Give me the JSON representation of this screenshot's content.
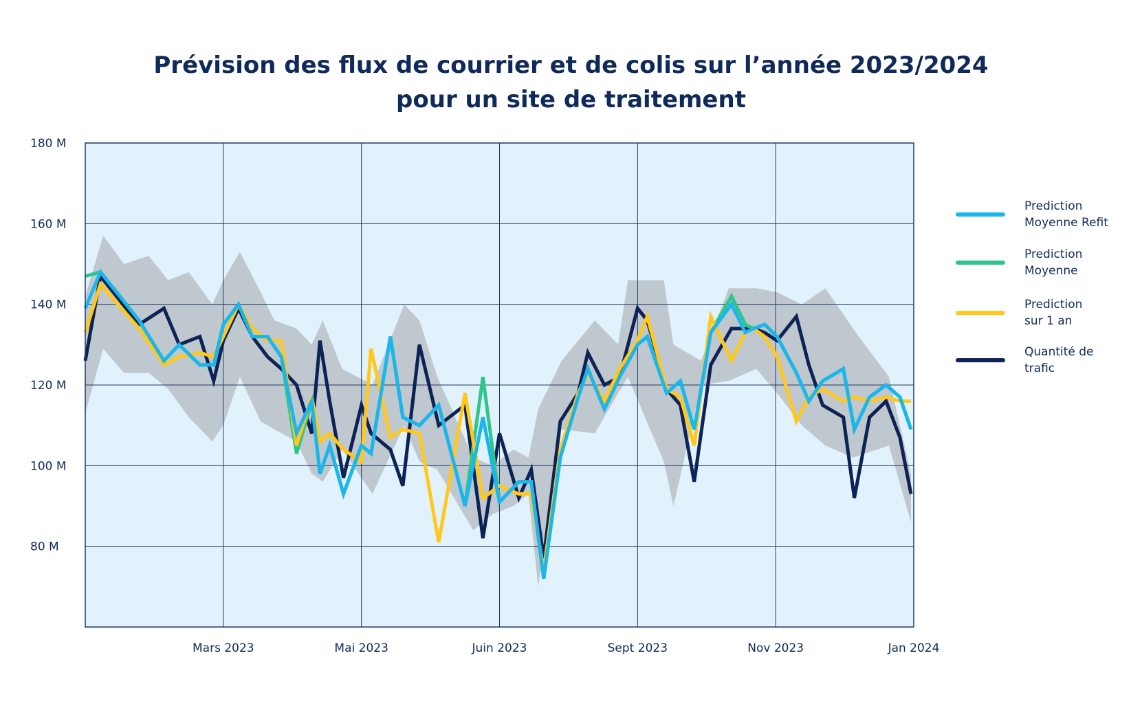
{
  "title_lines": [
    "Prévision des flux de courrier et de colis sur l’année 2023/2024",
    "pour un site de traitement"
  ],
  "chart_data": {
    "type": "line",
    "title": "Prévision des flux de courrier et de colis sur l’année 2023/2024 pour un site de traitement",
    "xlabel": "",
    "ylabel": "",
    "ylim": [
      60,
      180
    ],
    "y_ticks": [
      80,
      100,
      120,
      140,
      160,
      180
    ],
    "y_tick_labels": [
      "80 M",
      "100 M",
      "120 M",
      "140 M",
      "160 M",
      "180 M"
    ],
    "x_ticks": [
      1,
      2,
      3,
      4,
      5,
      6
    ],
    "x_tick_labels": [
      "Mars 2023",
      "Mai 2023",
      "Juin 2023",
      "Sept 2023",
      "Nov 2023",
      "Jan 2024"
    ],
    "xlim": [
      0,
      6
    ],
    "grid": true,
    "legend_position": "right",
    "colors": {
      "plot_background": "#e1f2fc",
      "grid": "#1f3864",
      "band": "#bfc7cf"
    },
    "band": {
      "x": [
        0,
        0.13,
        0.28,
        0.46,
        0.6,
        0.75,
        0.92,
        1.0,
        1.12,
        1.27,
        1.37,
        1.53,
        1.64,
        1.72,
        1.86,
        2.08,
        2.31,
        2.42,
        2.55,
        2.81,
        2.95,
        3.1,
        3.21,
        3.28,
        3.45,
        3.69,
        3.86,
        3.93,
        4.19,
        4.26,
        4.46,
        4.66,
        4.86,
        5.01,
        5.19,
        5.36,
        5.56,
        5.82,
        5.98
      ],
      "upper": [
        142,
        157,
        150,
        152,
        146,
        148,
        140,
        146,
        153,
        143,
        136,
        134,
        130,
        136,
        124,
        120,
        140,
        136,
        122,
        102,
        100,
        104,
        102,
        114,
        126,
        136,
        130,
        146,
        146,
        130,
        126,
        144,
        144,
        143,
        140,
        144,
        134,
        122,
        98
      ],
      "lower": [
        113,
        129,
        123,
        123,
        119,
        112,
        106,
        110,
        122,
        111,
        109,
        106,
        98,
        96,
        104,
        93,
        110,
        101,
        99,
        84,
        88,
        90,
        93,
        70,
        109,
        108,
        118,
        122,
        101,
        90,
        120,
        121,
        124,
        118,
        110,
        105,
        102,
        105,
        86
      ]
    },
    "x": [
      0,
      0.11,
      0.39,
      0.57,
      0.68,
      0.83,
      0.93,
      1.0,
      1.11,
      1.21,
      1.32,
      1.42,
      1.53,
      1.64,
      1.7,
      1.77,
      1.87,
      2.0,
      2.07,
      2.21,
      2.3,
      2.42,
      2.56,
      2.75,
      2.88,
      3.0,
      3.14,
      3.23,
      3.32,
      3.44,
      3.57,
      3.64,
      3.76,
      3.87,
      4.0,
      4.07,
      4.21,
      4.31,
      4.41,
      4.53,
      4.68,
      4.78,
      4.84,
      4.92,
      5.01,
      5.15,
      5.24,
      5.34,
      5.49,
      5.57,
      5.68,
      5.8,
      5.9,
      5.98
    ],
    "series": [
      {
        "name": "Quantité de trafic",
        "color": "#0d2255",
        "values": [
          126,
          147,
          135,
          139,
          130,
          132,
          121,
          131,
          139,
          132,
          127,
          124,
          120,
          108,
          131,
          116,
          97,
          115,
          108,
          104,
          95,
          130,
          110,
          115,
          82,
          108,
          92,
          99,
          77,
          111,
          118,
          128,
          120,
          122,
          139,
          136,
          119,
          115,
          96,
          125,
          134,
          134,
          134,
          133,
          131,
          137,
          125,
          115,
          112,
          92,
          112,
          116,
          107,
          93
        ]
      },
      {
        "name": "Prediction Moyenne Refit",
        "color": "#1ab6ec",
        "values": [
          139,
          148,
          136,
          126,
          130,
          125,
          125,
          135,
          140,
          132,
          132,
          127,
          108,
          116,
          98,
          105,
          93,
          105,
          103,
          132,
          112,
          110,
          115,
          90,
          112,
          91,
          96,
          96,
          72,
          102,
          117,
          124,
          114,
          122,
          130,
          132,
          118,
          121,
          109,
          133,
          140,
          133,
          134,
          135,
          132,
          123,
          116,
          121,
          124,
          109,
          117,
          120,
          117,
          109
        ]
      },
      {
        "name": "Prediction Moyenne",
        "color": "#2fc58c",
        "values": [
          147,
          148,
          136,
          126,
          130,
          125,
          125,
          135,
          140,
          132,
          132,
          127,
          103,
          116,
          98,
          105,
          93,
          105,
          103,
          132,
          112,
          110,
          115,
          90,
          122,
          91,
          96,
          96,
          72,
          102,
          117,
          124,
          114,
          122,
          130,
          132,
          118,
          121,
          109,
          133,
          142,
          135,
          134,
          135,
          132,
          123,
          116,
          121,
          124,
          109,
          117,
          120,
          117,
          109
        ]
      },
      {
        "name": "Prediction sur 1 an",
        "color": "#ffc81a",
        "values": [
          133,
          145,
          134,
          125,
          127,
          128,
          127,
          132,
          140,
          134,
          131,
          131,
          105,
          117,
          106,
          108,
          104,
          101,
          129,
          107,
          109,
          108,
          81,
          118,
          92,
          95,
          93,
          93,
          74,
          104,
          118,
          123,
          116,
          124,
          131,
          137,
          119,
          117,
          105,
          137,
          126,
          133,
          134,
          132,
          127,
          111,
          117,
          119,
          116,
          117,
          116,
          117,
          116,
          116
        ]
      }
    ],
    "legend_order": [
      "Prediction Moyenne Refit",
      "Prediction Moyenne",
      "Prediction sur 1 an",
      "Quantité de trafic"
    ]
  },
  "legend": [
    {
      "lines": [
        "Prediction",
        "Moyenne Refit"
      ],
      "color": "#1ab6ec"
    },
    {
      "lines": [
        "Prediction",
        "Moyenne"
      ],
      "color": "#2fc58c"
    },
    {
      "lines": [
        "Prediction",
        "sur 1 an"
      ],
      "color": "#ffc81a"
    },
    {
      "lines": [
        "Quantité de",
        "trafic"
      ],
      "color": "#0d2255"
    }
  ]
}
